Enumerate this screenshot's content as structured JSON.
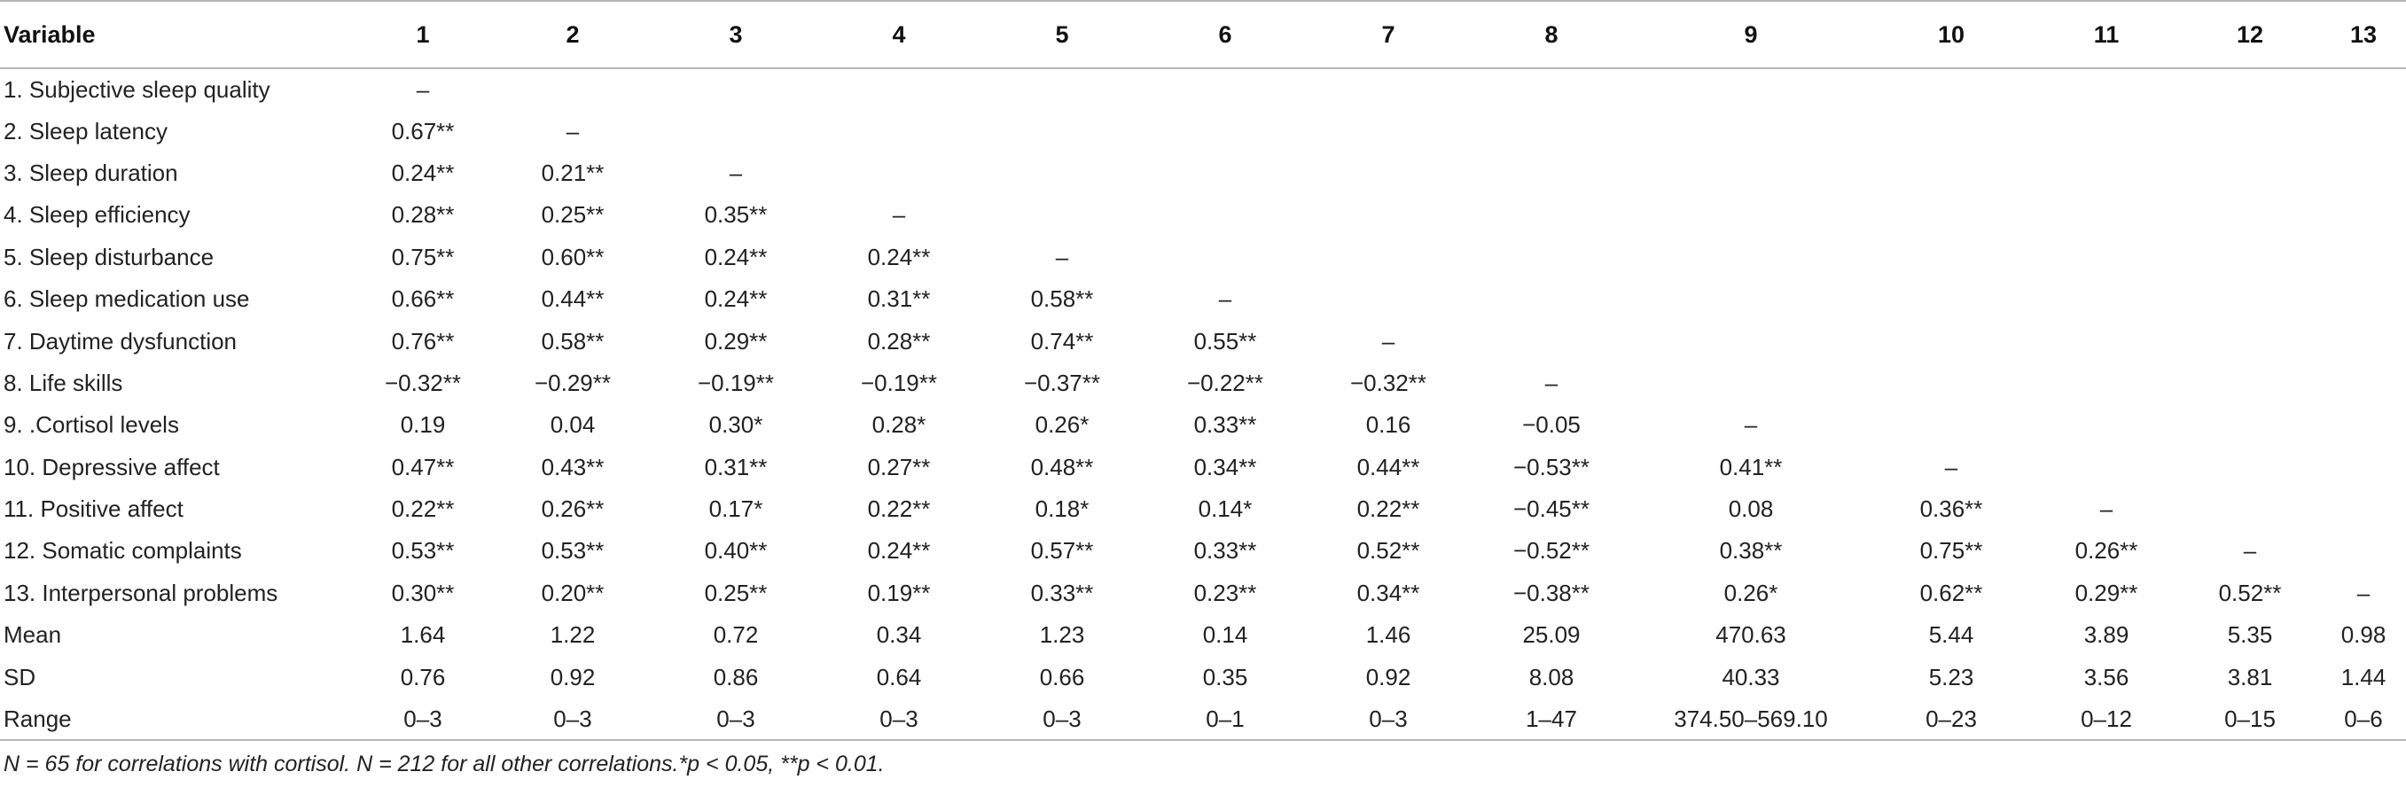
{
  "table": {
    "headers": [
      "Variable",
      "1",
      "2",
      "3",
      "4",
      "5",
      "6",
      "7",
      "8",
      "9",
      "10",
      "11",
      "12",
      "13"
    ],
    "rows": [
      {
        "label": "1. Subjective sleep quality",
        "cells": [
          "–",
          "",
          "",
          "",
          "",
          "",
          "",
          "",
          "",
          "",
          "",
          "",
          ""
        ]
      },
      {
        "label": "2. Sleep latency",
        "cells": [
          "0.67**",
          "–",
          "",
          "",
          "",
          "",
          "",
          "",
          "",
          "",
          "",
          "",
          ""
        ]
      },
      {
        "label": "3. Sleep duration",
        "cells": [
          "0.24**",
          "0.21**",
          "–",
          "",
          "",
          "",
          "",
          "",
          "",
          "",
          "",
          "",
          ""
        ]
      },
      {
        "label": "4. Sleep efficiency",
        "cells": [
          "0.28**",
          "0.25**",
          "0.35**",
          "–",
          "",
          "",
          "",
          "",
          "",
          "",
          "",
          "",
          ""
        ]
      },
      {
        "label": "5. Sleep disturbance",
        "cells": [
          "0.75**",
          "0.60**",
          "0.24**",
          "0.24**",
          "–",
          "",
          "",
          "",
          "",
          "",
          "",
          "",
          ""
        ]
      },
      {
        "label": "6. Sleep medication use",
        "cells": [
          "0.66**",
          "0.44**",
          "0.24**",
          "0.31**",
          "0.58**",
          "–",
          "",
          "",
          "",
          "",
          "",
          "",
          ""
        ]
      },
      {
        "label": "7. Daytime dysfunction",
        "cells": [
          "0.76**",
          "0.58**",
          "0.29**",
          "0.28**",
          "0.74**",
          "0.55**",
          "–",
          "",
          "",
          "",
          "",
          "",
          ""
        ]
      },
      {
        "label": "8. Life skills",
        "cells": [
          "−0.32**",
          "−0.29**",
          "−0.19**",
          "−0.19**",
          "−0.37**",
          "−0.22**",
          "−0.32**",
          "–",
          "",
          "",
          "",
          "",
          ""
        ]
      },
      {
        "label": "9. .Cortisol levels",
        "cells": [
          "0.19",
          "0.04",
          "0.30*",
          "0.28*",
          "0.26*",
          "0.33**",
          "0.16",
          "−0.05",
          "–",
          "",
          "",
          "",
          ""
        ]
      },
      {
        "label": "10. Depressive affect",
        "cells": [
          "0.47**",
          "0.43**",
          "0.31**",
          "0.27**",
          "0.48**",
          "0.34**",
          "0.44**",
          "−0.53**",
          "0.41**",
          "–",
          "",
          "",
          ""
        ]
      },
      {
        "label": "11. Positive affect",
        "cells": [
          "0.22**",
          "0.26**",
          "0.17*",
          "0.22**",
          "0.18*",
          "0.14*",
          "0.22**",
          "−0.45**",
          "0.08",
          "0.36**",
          "–",
          "",
          ""
        ]
      },
      {
        "label": "12. Somatic complaints",
        "cells": [
          "0.53**",
          "0.53**",
          "0.40**",
          "0.24**",
          "0.57**",
          "0.33**",
          "0.52**",
          "−0.52**",
          "0.38**",
          "0.75**",
          "0.26**",
          "–",
          ""
        ]
      },
      {
        "label": "13. Interpersonal problems",
        "cells": [
          "0.30**",
          "0.20**",
          "0.25**",
          "0.19**",
          "0.33**",
          "0.23**",
          "0.34**",
          "−0.38**",
          "0.26*",
          "0.62**",
          "0.29**",
          "0.52**",
          "–"
        ]
      },
      {
        "label": "Mean",
        "cells": [
          "1.64",
          "1.22",
          "0.72",
          "0.34",
          "1.23",
          "0.14",
          "1.46",
          "25.09",
          "470.63",
          "5.44",
          "3.89",
          "5.35",
          "0.98"
        ]
      },
      {
        "label": "SD",
        "cells": [
          "0.76",
          "0.92",
          "0.86",
          "0.64",
          "0.66",
          "0.35",
          "0.92",
          "8.08",
          "40.33",
          "5.23",
          "3.56",
          "3.81",
          "1.44"
        ]
      },
      {
        "label": "Range",
        "cells": [
          "0–3",
          "0–3",
          "0–3",
          "0–3",
          "0–3",
          "0–1",
          "0–3",
          "1–47",
          "374.50–569.10",
          "0–23",
          "0–12",
          "0–15",
          "0–6"
        ]
      }
    ]
  },
  "footnote": "N = 65 for correlations with cortisol. N = 212 for all other correlations.*p < 0.05, **p < 0.01."
}
